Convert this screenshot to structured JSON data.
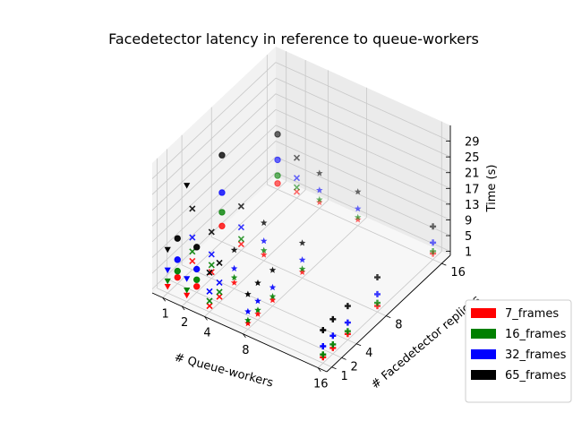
{
  "chart_data": {
    "type": "scatter",
    "projection": "3d",
    "title": "Facedetector latency in reference to queue-workers",
    "xlabel": "# Queue-workers",
    "ylabel": "# Facedetector replicas",
    "zlabel": "Time (s)",
    "xticks": [
      "1",
      "2",
      "4",
      "8",
      "16"
    ],
    "yticks": [
      "1",
      "2",
      "4",
      "8",
      "16"
    ],
    "zticks": [
      "1",
      "5",
      "9",
      "13",
      "17",
      "21",
      "25",
      "29"
    ],
    "zlim": [
      0,
      33
    ],
    "grid": true,
    "legend_position": "lower-right",
    "series": [
      {
        "name": "7_frames",
        "color": "#ff0000",
        "points": [
          {
            "x": 1,
            "y": 1,
            "z": 1.6,
            "marker": "v"
          },
          {
            "x": 1,
            "y": 2,
            "z": 1.6,
            "marker": "o"
          },
          {
            "x": 1,
            "y": 4,
            "z": 2.2,
            "marker": "x"
          },
          {
            "x": 1,
            "y": 8,
            "z": 4.0,
            "marker": "o"
          },
          {
            "x": 1,
            "y": 16,
            "z": 1.5,
            "marker": "o"
          },
          {
            "x": 2,
            "y": 1,
            "z": 1.6,
            "marker": "v"
          },
          {
            "x": 2,
            "y": 2,
            "z": 1.5,
            "marker": "o"
          },
          {
            "x": 2,
            "y": 4,
            "z": 1.6,
            "marker": "x"
          },
          {
            "x": 2,
            "y": 8,
            "z": 1.6,
            "marker": "x"
          },
          {
            "x": 2,
            "y": 16,
            "z": 1.6,
            "marker": "x"
          },
          {
            "x": 4,
            "y": 1,
            "z": 1.5,
            "marker": "x"
          },
          {
            "x": 4,
            "y": 2,
            "z": 1.5,
            "marker": "x"
          },
          {
            "x": 4,
            "y": 4,
            "z": 1.5,
            "marker": "*"
          },
          {
            "x": 4,
            "y": 8,
            "z": 1.5,
            "marker": "*"
          },
          {
            "x": 4,
            "y": 16,
            "z": 1.5,
            "marker": "*"
          },
          {
            "x": 8,
            "y": 1,
            "z": 1.5,
            "marker": "*"
          },
          {
            "x": 8,
            "y": 2,
            "z": 1.5,
            "marker": "*"
          },
          {
            "x": 8,
            "y": 4,
            "z": 1.5,
            "marker": "*"
          },
          {
            "x": 8,
            "y": 8,
            "z": 1.5,
            "marker": "*"
          },
          {
            "x": 8,
            "y": 16,
            "z": 1.5,
            "marker": "*"
          },
          {
            "x": 16,
            "y": 1,
            "z": 1.5,
            "marker": "P"
          },
          {
            "x": 16,
            "y": 2,
            "z": 1.5,
            "marker": "P"
          },
          {
            "x": 16,
            "y": 4,
            "z": 1.5,
            "marker": "P"
          },
          {
            "x": 16,
            "y": 8,
            "z": 1.5,
            "marker": "P"
          },
          {
            "x": 16,
            "y": 16,
            "z": 1.5,
            "marker": "P"
          }
        ]
      },
      {
        "name": "16_frames",
        "color": "#008000",
        "points": [
          {
            "x": 1,
            "y": 1,
            "z": 3.0,
            "marker": "v"
          },
          {
            "x": 1,
            "y": 2,
            "z": 3.2,
            "marker": "o"
          },
          {
            "x": 1,
            "y": 4,
            "z": 4.6,
            "marker": "x"
          },
          {
            "x": 1,
            "y": 8,
            "z": 7.5,
            "marker": "o"
          },
          {
            "x": 1,
            "y": 16,
            "z": 3.5,
            "marker": "o"
          },
          {
            "x": 2,
            "y": 1,
            "z": 2.9,
            "marker": "v"
          },
          {
            "x": 2,
            "y": 2,
            "z": 3.2,
            "marker": "o"
          },
          {
            "x": 2,
            "y": 4,
            "z": 3.4,
            "marker": "x"
          },
          {
            "x": 2,
            "y": 8,
            "z": 2.9,
            "marker": "x"
          },
          {
            "x": 2,
            "y": 16,
            "z": 2.7,
            "marker": "x"
          },
          {
            "x": 4,
            "y": 1,
            "z": 2.8,
            "marker": "x"
          },
          {
            "x": 4,
            "y": 2,
            "z": 2.7,
            "marker": "x"
          },
          {
            "x": 4,
            "y": 4,
            "z": 2.8,
            "marker": "*"
          },
          {
            "x": 4,
            "y": 8,
            "z": 2.6,
            "marker": "*"
          },
          {
            "x": 4,
            "y": 16,
            "z": 2.2,
            "marker": "*"
          },
          {
            "x": 8,
            "y": 1,
            "z": 2.3,
            "marker": "*"
          },
          {
            "x": 8,
            "y": 2,
            "z": 2.5,
            "marker": "*"
          },
          {
            "x": 8,
            "y": 4,
            "z": 2.4,
            "marker": "*"
          },
          {
            "x": 8,
            "y": 8,
            "z": 2.3,
            "marker": "*"
          },
          {
            "x": 8,
            "y": 16,
            "z": 2.1,
            "marker": "*"
          },
          {
            "x": 16,
            "y": 1,
            "z": 2.2,
            "marker": "P"
          },
          {
            "x": 16,
            "y": 2,
            "z": 2.4,
            "marker": "P"
          },
          {
            "x": 16,
            "y": 4,
            "z": 2.2,
            "marker": "P"
          },
          {
            "x": 16,
            "y": 8,
            "z": 2.3,
            "marker": "P"
          },
          {
            "x": 16,
            "y": 16,
            "z": 2.1,
            "marker": "P"
          }
        ]
      },
      {
        "name": "32_frames",
        "color": "#0000ff",
        "points": [
          {
            "x": 1,
            "y": 1,
            "z": 5.8,
            "marker": "v"
          },
          {
            "x": 1,
            "y": 2,
            "z": 6.1,
            "marker": "o"
          },
          {
            "x": 1,
            "y": 4,
            "z": 8.2,
            "marker": "x"
          },
          {
            "x": 1,
            "y": 8,
            "z": 12.5,
            "marker": "o"
          },
          {
            "x": 1,
            "y": 16,
            "z": 7.5,
            "marker": "o"
          },
          {
            "x": 2,
            "y": 1,
            "z": 5.8,
            "marker": "v"
          },
          {
            "x": 2,
            "y": 2,
            "z": 5.9,
            "marker": "o"
          },
          {
            "x": 2,
            "y": 4,
            "z": 6.1,
            "marker": "x"
          },
          {
            "x": 2,
            "y": 8,
            "z": 5.9,
            "marker": "x"
          },
          {
            "x": 2,
            "y": 16,
            "z": 5.1,
            "marker": "x"
          },
          {
            "x": 4,
            "y": 1,
            "z": 5.2,
            "marker": "x"
          },
          {
            "x": 4,
            "y": 2,
            "z": 5.1,
            "marker": "x"
          },
          {
            "x": 4,
            "y": 4,
            "z": 5.1,
            "marker": "*"
          },
          {
            "x": 4,
            "y": 8,
            "z": 5.0,
            "marker": "*"
          },
          {
            "x": 4,
            "y": 16,
            "z": 4.6,
            "marker": "*"
          },
          {
            "x": 8,
            "y": 1,
            "z": 4.5,
            "marker": "*"
          },
          {
            "x": 8,
            "y": 2,
            "z": 4.8,
            "marker": "*"
          },
          {
            "x": 8,
            "y": 4,
            "z": 4.7,
            "marker": "*"
          },
          {
            "x": 8,
            "y": 8,
            "z": 4.6,
            "marker": "*"
          },
          {
            "x": 8,
            "y": 16,
            "z": 4.3,
            "marker": "*"
          },
          {
            "x": 16,
            "y": 1,
            "z": 4.3,
            "marker": "P"
          },
          {
            "x": 16,
            "y": 2,
            "z": 4.6,
            "marker": "P"
          },
          {
            "x": 16,
            "y": 4,
            "z": 4.4,
            "marker": "P"
          },
          {
            "x": 16,
            "y": 8,
            "z": 4.5,
            "marker": "P"
          },
          {
            "x": 16,
            "y": 16,
            "z": 4.3,
            "marker": "P"
          }
        ]
      },
      {
        "name": "65_frames",
        "color": "#000000",
        "points": [
          {
            "x": 1,
            "y": 1,
            "z": 11.0,
            "marker": "v"
          },
          {
            "x": 1,
            "y": 2,
            "z": 11.5,
            "marker": "o"
          },
          {
            "x": 1,
            "y": 4,
            "z": 15.5,
            "marker": "x"
          },
          {
            "x": 1,
            "y": 8,
            "z": 22.0,
            "marker": "o"
          },
          {
            "x": 1,
            "y": 16,
            "z": 14.0,
            "marker": "o"
          },
          {
            "x": 2,
            "y": 1,
            "z": 29.5,
            "marker": "v"
          },
          {
            "x": 2,
            "y": 2,
            "z": 11.5,
            "marker": "o"
          },
          {
            "x": 2,
            "y": 4,
            "z": 11.8,
            "marker": "x"
          },
          {
            "x": 2,
            "y": 8,
            "z": 11.2,
            "marker": "x"
          },
          {
            "x": 2,
            "y": 16,
            "z": 10.2,
            "marker": "x"
          },
          {
            "x": 4,
            "y": 1,
            "z": 10.0,
            "marker": "x"
          },
          {
            "x": 4,
            "y": 2,
            "z": 10.1,
            "marker": "x"
          },
          {
            "x": 4,
            "y": 4,
            "z": 9.8,
            "marker": "*"
          },
          {
            "x": 4,
            "y": 8,
            "z": 9.6,
            "marker": "*"
          },
          {
            "x": 4,
            "y": 16,
            "z": 8.9,
            "marker": "*"
          },
          {
            "x": 8,
            "y": 1,
            "z": 8.9,
            "marker": "*"
          },
          {
            "x": 8,
            "y": 2,
            "z": 9.4,
            "marker": "*"
          },
          {
            "x": 8,
            "y": 4,
            "z": 9.1,
            "marker": "*"
          },
          {
            "x": 8,
            "y": 8,
            "z": 8.9,
            "marker": "*"
          },
          {
            "x": 8,
            "y": 16,
            "z": 8.6,
            "marker": "*"
          },
          {
            "x": 16,
            "y": 1,
            "z": 8.4,
            "marker": "P"
          },
          {
            "x": 16,
            "y": 2,
            "z": 8.8,
            "marker": "P"
          },
          {
            "x": 16,
            "y": 4,
            "z": 8.6,
            "marker": "P"
          },
          {
            "x": 16,
            "y": 8,
            "z": 8.8,
            "marker": "P"
          },
          {
            "x": 16,
            "y": 16,
            "z": 8.4,
            "marker": "P"
          }
        ]
      }
    ]
  }
}
